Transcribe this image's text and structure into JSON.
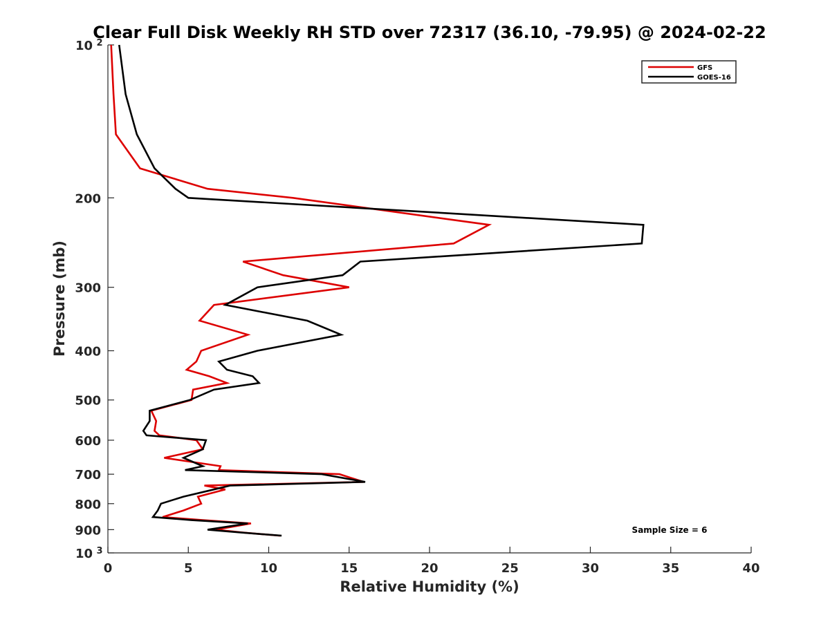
{
  "chart_data": {
    "type": "line",
    "title": "Clear Full Disk Weekly RH STD over 72317 (36.10, -79.95) @ 2024-02-22",
    "xlabel": "Relative Humidity (%)",
    "ylabel": "Pressure (mb)",
    "xlim": [
      0,
      40
    ],
    "ylim": [
      100,
      1000
    ],
    "y_scale": "log",
    "y_reversed": true,
    "grid": false,
    "legend_position": "top-right",
    "x_ticks": [
      0,
      5,
      10,
      15,
      20,
      25,
      30,
      35,
      40
    ],
    "y_ticks": [
      {
        "value": 100,
        "label": "10",
        "exp": "2"
      },
      {
        "value": 200,
        "label": "200"
      },
      {
        "value": 300,
        "label": "300"
      },
      {
        "value": 400,
        "label": "400"
      },
      {
        "value": 500,
        "label": "500"
      },
      {
        "value": 600,
        "label": "600"
      },
      {
        "value": 700,
        "label": "700"
      },
      {
        "value": 800,
        "label": "800"
      },
      {
        "value": 900,
        "label": "900"
      },
      {
        "value": 1000,
        "label": "10",
        "exp": "3"
      }
    ],
    "annotation": "Sample Size = 6",
    "series": [
      {
        "name": "GFS",
        "color": "#dd0000",
        "points": [
          [
            0.2,
            100
          ],
          [
            0.35,
            125
          ],
          [
            0.5,
            150
          ],
          [
            2.0,
            175
          ],
          [
            6.2,
            192
          ],
          [
            11.5,
            200
          ],
          [
            23.7,
            226
          ],
          [
            21.5,
            246
          ],
          [
            8.4,
            267
          ],
          [
            10.9,
            284
          ],
          [
            15.0,
            300
          ],
          [
            6.6,
            325
          ],
          [
            5.7,
            349
          ],
          [
            8.7,
            372
          ],
          [
            5.8,
            400
          ],
          [
            5.5,
            420
          ],
          [
            4.9,
            436
          ],
          [
            6.3,
            449
          ],
          [
            7.4,
            463
          ],
          [
            5.3,
            477
          ],
          [
            5.2,
            500
          ],
          [
            2.7,
            525
          ],
          [
            3.0,
            550
          ],
          [
            2.9,
            575
          ],
          [
            3.2,
            587
          ],
          [
            5.5,
            600
          ],
          [
            5.9,
            625
          ],
          [
            3.5,
            650
          ],
          [
            7.0,
            675
          ],
          [
            6.9,
            687
          ],
          [
            14.4,
            700
          ],
          [
            15.9,
            725
          ],
          [
            6.0,
            737
          ],
          [
            7.3,
            750
          ],
          [
            5.6,
            775
          ],
          [
            5.8,
            800
          ],
          [
            4.7,
            825
          ],
          [
            3.4,
            850
          ],
          [
            5.9,
            862
          ],
          [
            8.9,
            875
          ],
          [
            6.7,
            900
          ],
          [
            8.4,
            912
          ],
          [
            10.7,
            925
          ]
        ]
      },
      {
        "name": "GOES-16",
        "color": "#000000",
        "points": [
          [
            0.7,
            100
          ],
          [
            1.1,
            125
          ],
          [
            1.8,
            150
          ],
          [
            2.9,
            175
          ],
          [
            4.2,
            192
          ],
          [
            5.0,
            200
          ],
          [
            33.3,
            226
          ],
          [
            33.2,
            246
          ],
          [
            15.7,
            267
          ],
          [
            14.6,
            284
          ],
          [
            9.3,
            300
          ],
          [
            7.3,
            325
          ],
          [
            12.4,
            349
          ],
          [
            14.5,
            372
          ],
          [
            9.3,
            400
          ],
          [
            6.9,
            420
          ],
          [
            7.4,
            436
          ],
          [
            9.0,
            449
          ],
          [
            9.4,
            463
          ],
          [
            6.6,
            477
          ],
          [
            5.1,
            500
          ],
          [
            2.6,
            525
          ],
          [
            2.6,
            550
          ],
          [
            2.2,
            575
          ],
          [
            2.4,
            587
          ],
          [
            6.1,
            600
          ],
          [
            5.9,
            625
          ],
          [
            4.7,
            650
          ],
          [
            5.9,
            675
          ],
          [
            4.8,
            687
          ],
          [
            13.3,
            700
          ],
          [
            16.0,
            725
          ],
          [
            7.6,
            737
          ],
          [
            6.6,
            750
          ],
          [
            4.7,
            775
          ],
          [
            3.3,
            800
          ],
          [
            3.1,
            825
          ],
          [
            2.8,
            850
          ],
          [
            5.2,
            862
          ],
          [
            8.7,
            875
          ],
          [
            6.2,
            900
          ],
          [
            8.3,
            912
          ],
          [
            10.8,
            925
          ]
        ]
      }
    ]
  }
}
